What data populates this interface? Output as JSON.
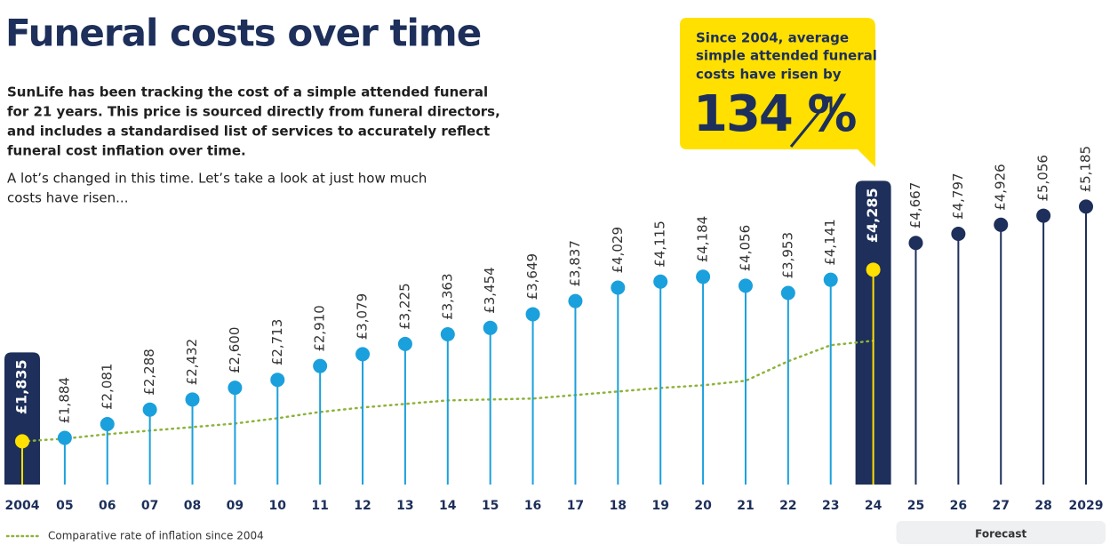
{
  "chart_data": {
    "type": "lollipop",
    "title": "Funeral costs over time",
    "description": [
      "SunLife has been tracking the cost of a simple attended funeral",
      "for 21 years. This price is sourced directly from funeral directors,",
      "and includes a standardised list of services to accurately reflect",
      "funeral cost inflation over time."
    ],
    "description_2": [
      "A lot’s changed in this time. Let’s take a look at just how much",
      "costs have risen..."
    ],
    "callout": {
      "text": [
        "Since 2004, average",
        "simple attended funeral",
        "costs have risen by"
      ],
      "value": 134,
      "value_label": "134 %"
    },
    "categories": [
      "2004",
      "05",
      "06",
      "07",
      "08",
      "09",
      "10",
      "11",
      "12",
      "13",
      "14",
      "15",
      "16",
      "17",
      "18",
      "19",
      "20",
      "21",
      "22",
      "23",
      "24",
      "25",
      "26",
      "27",
      "28",
      "2029"
    ],
    "values": [
      1835,
      1884,
      2081,
      2288,
      2432,
      2600,
      2713,
      2910,
      3079,
      3225,
      3363,
      3454,
      3649,
      3837,
      4029,
      4115,
      4184,
      4056,
      3953,
      4141,
      4285,
      4667,
      4797,
      4926,
      5056,
      5185
    ],
    "value_labels": [
      "£1,835",
      "£1,884",
      "£2,081",
      "£2,288",
      "£2,432",
      "£2,600",
      "£2,713",
      "£2,910",
      "£3,079",
      "£3,225",
      "£3,363",
      "£3,454",
      "£3,649",
      "£3,837",
      "£4,029",
      "£4,115",
      "£4,184",
      "£4,056",
      "£3,953",
      "£4,141",
      "£4,285",
      "£4,667",
      "£4,797",
      "£4,926",
      "£5,056",
      "£5,185"
    ],
    "point_colors": [
      "#ffe000",
      "#1aa0dc",
      "#1aa0dc",
      "#1aa0dc",
      "#1aa0dc",
      "#1aa0dc",
      "#1aa0dc",
      "#1aa0dc",
      "#1aa0dc",
      "#1aa0dc",
      "#1aa0dc",
      "#1aa0dc",
      "#1aa0dc",
      "#1aa0dc",
      "#1aa0dc",
      "#1aa0dc",
      "#1aa0dc",
      "#1aa0dc",
      "#1aa0dc",
      "#1aa0dc",
      "#ffe000",
      "#1d2f5a",
      "#1d2f5a",
      "#1d2f5a",
      "#1d2f5a",
      "#1d2f5a"
    ],
    "highlight_color": "#ffe000",
    "forecast_color": "#1d2f5a",
    "forecast": {
      "label": "Forecast"
    },
    "inflation": {
      "name": "Comparative rate of inflation since 2004",
      "color": "#8db33a",
      "values": [
        1835,
        1873,
        1937,
        1988,
        2038,
        2089,
        2165,
        2254,
        2318,
        2369,
        2419,
        2432,
        2445,
        2496,
        2546,
        2597,
        2635,
        2699,
        2978,
        3207,
        3270,
        null,
        null,
        null,
        null,
        null
      ]
    },
    "ylim": [
      1180,
      5850
    ]
  }
}
